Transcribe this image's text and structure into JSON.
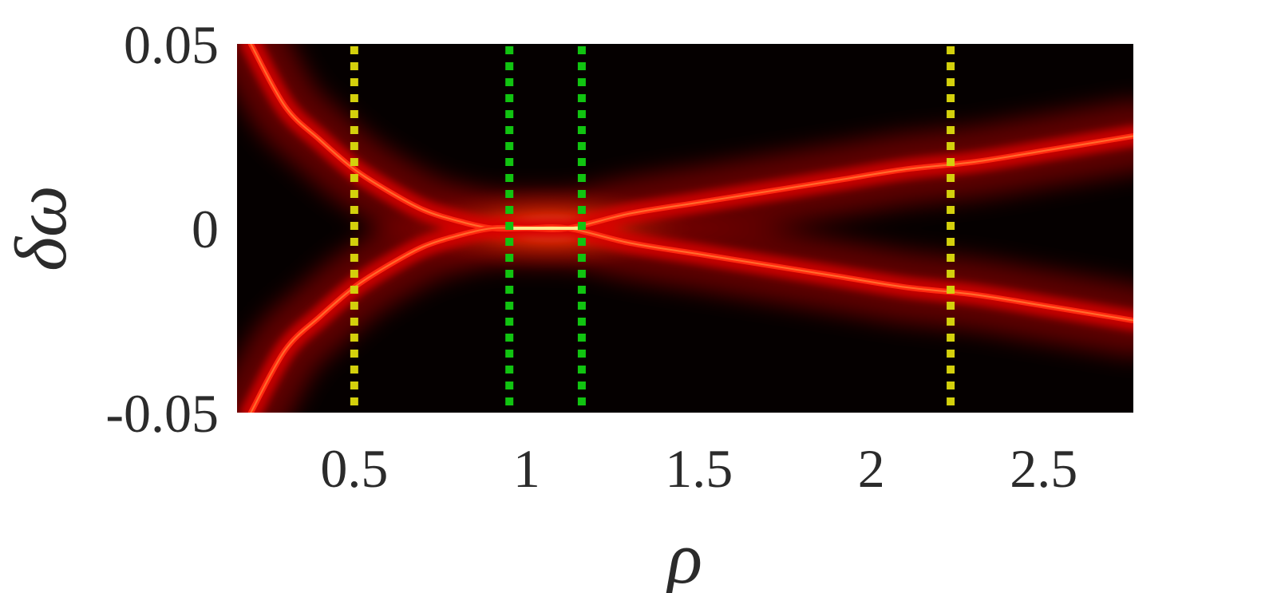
{
  "chart_data": {
    "type": "heatmap",
    "title": "",
    "xlabel": "ρ",
    "ylabel": "δω",
    "xlim": [
      0.16,
      2.76
    ],
    "ylim": [
      -0.05,
      0.05
    ],
    "x_ticks": [
      0.5,
      1,
      1.5,
      2,
      2.5
    ],
    "x_tick_labels": [
      "0.5",
      "1",
      "1.5",
      "2",
      "2.5"
    ],
    "y_ticks": [
      -0.05,
      0,
      0.05
    ],
    "y_tick_labels": [
      "-0.05",
      "0",
      "0.05"
    ],
    "colormap": [
      "#000000",
      "#5a0000",
      "#c40000",
      "#ff2a00",
      "#ff8c1a",
      "#ffe68c"
    ],
    "grid": false,
    "legend": "none",
    "resonance_branches": [
      {
        "x": [
          0.2,
          0.3,
          0.4,
          0.5,
          0.6,
          0.7,
          0.8,
          0.9,
          1.0,
          1.12,
          1.3,
          1.5,
          1.7,
          1.9,
          2.1,
          2.3,
          2.5,
          2.76
        ],
        "y": [
          0.05,
          0.033,
          0.024,
          0.016,
          0.01,
          0.005,
          0.002,
          0.0,
          0.0,
          0.0,
          0.004,
          0.007,
          0.01,
          0.013,
          0.016,
          0.018,
          0.021,
          0.025
        ]
      },
      {
        "x": [
          0.2,
          0.3,
          0.4,
          0.5,
          0.6,
          0.7,
          0.8,
          0.9,
          1.0,
          1.12,
          1.3,
          1.5,
          1.7,
          1.9,
          2.1,
          2.3,
          2.5,
          2.76
        ],
        "y": [
          -0.05,
          -0.033,
          -0.024,
          -0.016,
          -0.01,
          -0.005,
          -0.002,
          0.0,
          0.0,
          0.0,
          -0.004,
          -0.007,
          -0.01,
          -0.013,
          -0.016,
          -0.018,
          -0.021,
          -0.025
        ]
      }
    ],
    "vertical_markers": [
      {
        "x": 0.5,
        "color": "#d4d00c",
        "style": "dotted"
      },
      {
        "x": 0.95,
        "color": "#11c411",
        "style": "dotted"
      },
      {
        "x": 1.16,
        "color": "#11c411",
        "style": "dotted"
      },
      {
        "x": 2.23,
        "color": "#d4d00c",
        "style": "dotted"
      }
    ]
  }
}
